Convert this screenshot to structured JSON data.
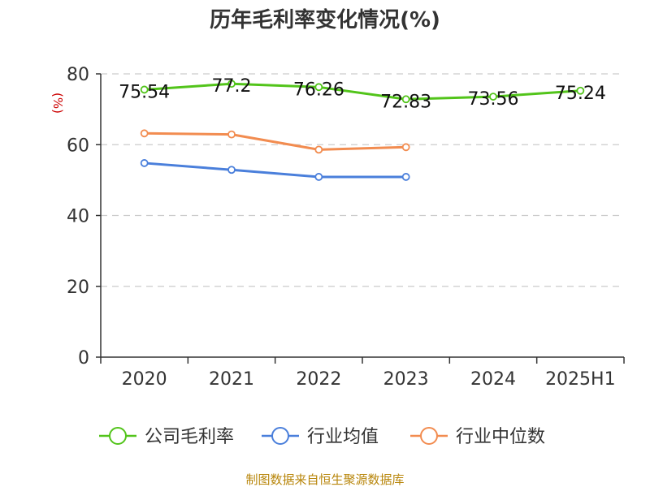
{
  "chart_data": {
    "type": "line",
    "title": "历年毛利率变化情况(%)",
    "ylabel": "(%)",
    "categories": [
      "2020",
      "2021",
      "2022",
      "2023",
      "2024",
      "2025H1"
    ],
    "yticks": [
      "0",
      "20",
      "40",
      "60",
      "80"
    ],
    "ylim": [
      0,
      80
    ],
    "grid": true,
    "legend_position": "bottom",
    "series": [
      {
        "name": "公司毛利率",
        "color": "#52c41a",
        "values": [
          75.54,
          77.2,
          76.26,
          72.83,
          73.56,
          75.24
        ],
        "labels": [
          "75.54",
          "77.2",
          "76.26",
          "72.83",
          "73.56",
          "75.24"
        ]
      },
      {
        "name": "行业均值",
        "color": "#4a7fdb",
        "values": [
          54.8,
          52.9,
          50.9,
          50.9,
          null,
          null
        ]
      },
      {
        "name": "行业中位数",
        "color": "#f28c50",
        "values": [
          63.2,
          62.9,
          58.6,
          59.3,
          null,
          null
        ]
      }
    ]
  },
  "source": "制图数据来自恒生聚源数据库"
}
